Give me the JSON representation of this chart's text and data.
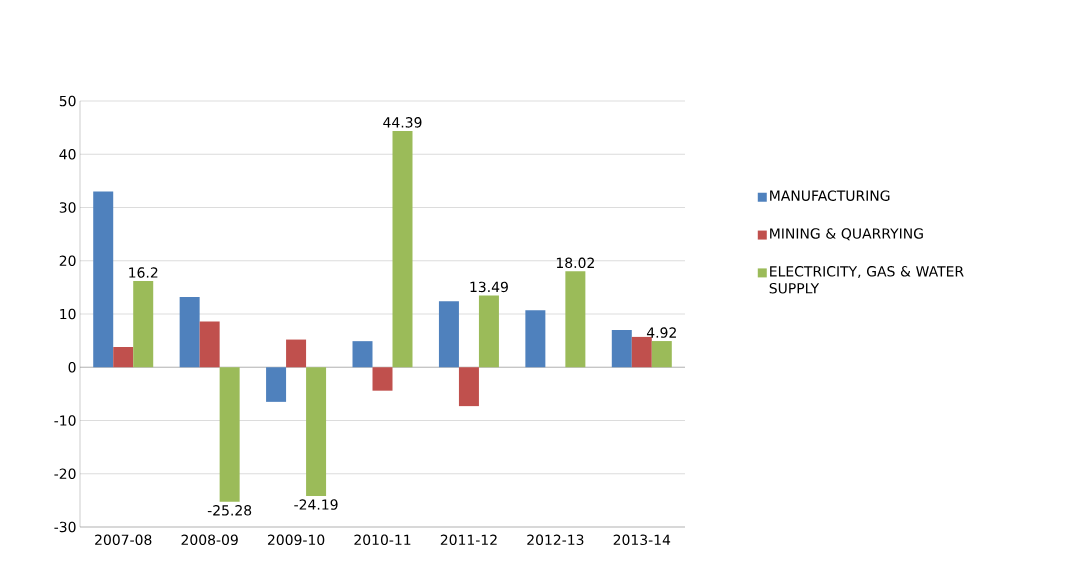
{
  "chart_data": {
    "type": "bar",
    "categories": [
      "2007-08",
      "2008-09",
      "2009-10",
      "2010-11",
      "2011-12",
      "2012-13",
      "2013-14"
    ],
    "series": [
      {
        "name": "MANUFACTURING",
        "color": "#4f81bd",
        "values": [
          33.0,
          13.2,
          -6.5,
          4.9,
          12.4,
          10.7,
          7.0
        ]
      },
      {
        "name": "MINING & QUARRYING",
        "color": "#c0504d",
        "values": [
          3.8,
          8.6,
          5.2,
          -4.4,
          -7.3,
          null,
          5.7
        ]
      },
      {
        "name": "ELECTRICITY, GAS & WATER SUPPLY",
        "color": "#9bbb59",
        "values": [
          16.2,
          -25.28,
          -24.19,
          44.39,
          13.49,
          18.02,
          4.92
        ],
        "value_labels": [
          "16.2",
          "-25.28",
          "-24.19",
          "44.39",
          "13.49",
          "18.02",
          "4.92"
        ]
      }
    ],
    "ylim": [
      -30,
      50
    ],
    "yticks": [
      -30,
      -20,
      -10,
      0,
      10,
      20,
      30,
      40,
      50
    ],
    "grid": "y",
    "legend": "right"
  }
}
